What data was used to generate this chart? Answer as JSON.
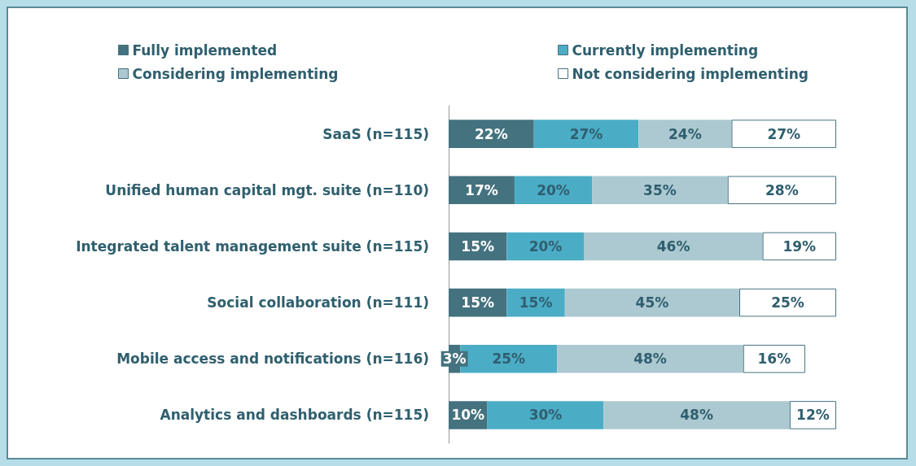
{
  "chart_data": {
    "type": "bar",
    "orientation": "horizontal",
    "stacked": true,
    "legend": "top",
    "categories": [
      "SaaS (n=115)",
      "Unified human capital mgt. suite (n=110)",
      "Integrated talent management suite (n=115)",
      "Social collaboration (n=111)",
      "Mobile access and notifications (n=116)",
      "Analytics and dashboards (n=115)"
    ],
    "series": [
      {
        "name": "Fully implemented",
        "color": "#44727f",
        "values": [
          22,
          17,
          15,
          15,
          3,
          10
        ],
        "value_labels": [
          "22%",
          "17%",
          "15%",
          "15%",
          "3%",
          "10%"
        ]
      },
      {
        "name": "Currently implementing",
        "color": "#4bacc6",
        "values": [
          27,
          20,
          20,
          15,
          25,
          30
        ],
        "value_labels": [
          "27%",
          "20%",
          "20%",
          "15%",
          "25%",
          "30%"
        ]
      },
      {
        "name": "Considering implementing",
        "color": "#acc9d1",
        "values": [
          24,
          35,
          46,
          45,
          48,
          48
        ],
        "value_labels": [
          "24%",
          "35%",
          "46%",
          "45%",
          "48%",
          "48%"
        ]
      },
      {
        "name": "Not considering implementing",
        "color": "#ffffff",
        "values": [
          27,
          28,
          19,
          25,
          16,
          12
        ],
        "value_labels": [
          "27%",
          "28%",
          "19%",
          "25%",
          "16%",
          "12%"
        ]
      }
    ]
  }
}
